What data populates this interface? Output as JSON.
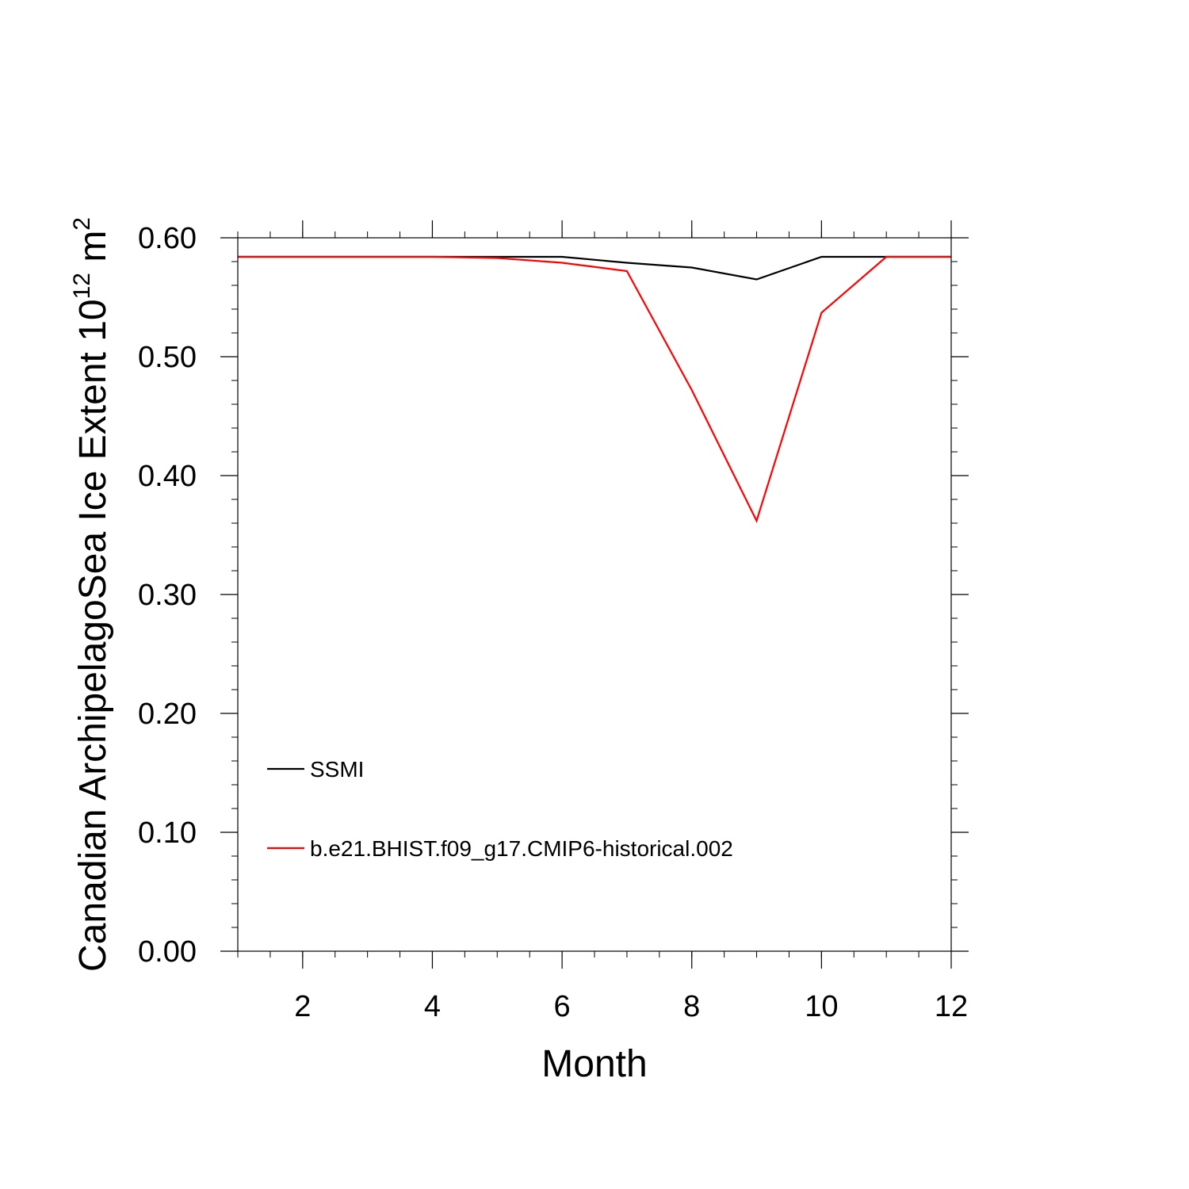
{
  "chart_data": {
    "type": "line",
    "title": "",
    "xlabel": "Month",
    "ylabel_main": "Canadian ArchipelagoSea Ice Extent 10",
    "ylabel_sup": "12",
    "ylabel_unit": " m",
    "ylabel_unit_sup": "2",
    "xlim": [
      1,
      12
    ],
    "ylim": [
      0.0,
      0.6
    ],
    "x_ticks": [
      2,
      4,
      6,
      8,
      10,
      12
    ],
    "x_tick_labels": [
      "2",
      "4",
      "6",
      "8",
      "10",
      "12"
    ],
    "y_ticks": [
      0.0,
      0.1,
      0.2,
      0.3,
      0.4,
      0.5,
      0.6
    ],
    "y_tick_labels": [
      "0.00",
      "0.10",
      "0.20",
      "0.30",
      "0.40",
      "0.50",
      "0.60"
    ],
    "x": [
      1,
      2,
      3,
      4,
      5,
      6,
      7,
      8,
      9,
      10,
      11,
      12
    ],
    "series": [
      {
        "name": "SSMI",
        "color": "#000000",
        "values": [
          0.584,
          0.584,
          0.584,
          0.584,
          0.584,
          0.584,
          0.579,
          0.575,
          0.565,
          0.584,
          0.584,
          0.584
        ]
      },
      {
        "name": "b.e21.BHIST.f09_g17.CMIP6-historical.002",
        "color": "#ff0000",
        "values": [
          0.584,
          0.584,
          0.584,
          0.584,
          0.583,
          0.579,
          0.572,
          0.472,
          0.362,
          0.537,
          0.584,
          0.584
        ]
      }
    ],
    "legend_position": "lower-left",
    "grid": false
  }
}
